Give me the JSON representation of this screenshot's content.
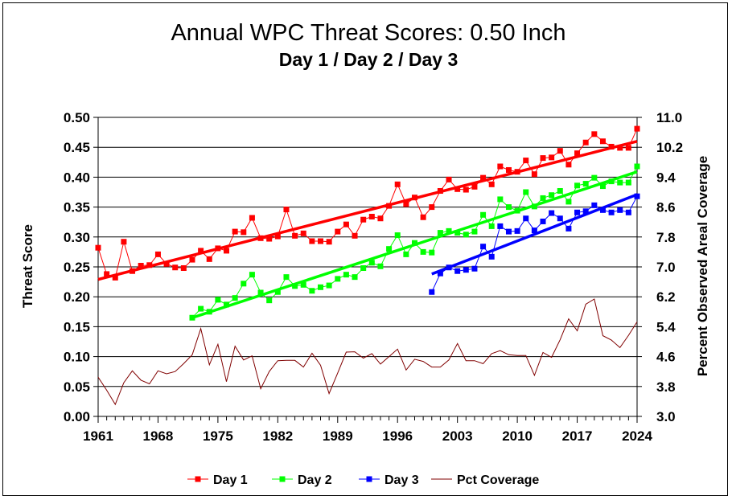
{
  "chart_data": {
    "type": "line",
    "title": "Annual WPC Threat Scores:  0.50 Inch",
    "subtitle": "Day 1 / Day 2 / Day 3",
    "ylabel": "Threat Score",
    "y2label": "Percent Observed Areal Coverage",
    "xlim": [
      1961,
      2024
    ],
    "ylim": [
      0,
      0.5
    ],
    "y2lim": [
      3.0,
      11.0
    ],
    "x_ticks": [
      "1961",
      "1968",
      "1975",
      "1982",
      "1989",
      "1996",
      "2003",
      "2010",
      "2017",
      "2024"
    ],
    "y_ticks": [
      "0.00",
      "0.05",
      "0.10",
      "0.15",
      "0.20",
      "0.25",
      "0.30",
      "0.35",
      "0.40",
      "0.45",
      "0.50"
    ],
    "y2_ticks": [
      "3.0",
      "3.8",
      "4.6",
      "5.4",
      "6.2",
      "7.0",
      "7.8",
      "8.6",
      "9.4",
      "10.2",
      "11.0"
    ],
    "grid": "horizontal",
    "legend_position": "bottom",
    "series": [
      {
        "name": "Day 1",
        "color": "#ff0000",
        "axis": "left",
        "marker": "square",
        "trend": [
          [
            1961,
            0.229
          ],
          [
            2024,
            0.46
          ]
        ],
        "x": [
          1961,
          1962,
          1963,
          1964,
          1965,
          1966,
          1967,
          1968,
          1969,
          1970,
          1971,
          1972,
          1973,
          1974,
          1975,
          1976,
          1977,
          1978,
          1979,
          1980,
          1981,
          1982,
          1983,
          1984,
          1985,
          1986,
          1987,
          1988,
          1989,
          1990,
          1991,
          1992,
          1993,
          1994,
          1995,
          1996,
          1997,
          1998,
          1999,
          2000,
          2001,
          2002,
          2003,
          2004,
          2005,
          2006,
          2007,
          2008,
          2009,
          2010,
          2011,
          2012,
          2013,
          2014,
          2015,
          2016,
          2017,
          2018,
          2019,
          2020,
          2021,
          2022,
          2023,
          2024
        ],
        "values": [
          0.282,
          0.238,
          0.232,
          0.292,
          0.243,
          0.252,
          0.253,
          0.271,
          0.255,
          0.249,
          0.248,
          0.262,
          0.277,
          0.263,
          0.281,
          0.277,
          0.309,
          0.308,
          0.332,
          0.298,
          0.297,
          0.301,
          0.346,
          0.302,
          0.306,
          0.293,
          0.293,
          0.292,
          0.309,
          0.321,
          0.302,
          0.329,
          0.334,
          0.331,
          0.352,
          0.388,
          0.355,
          0.366,
          0.333,
          0.35,
          0.377,
          0.396,
          0.38,
          0.379,
          0.384,
          0.399,
          0.388,
          0.418,
          0.412,
          0.409,
          0.428,
          0.405,
          0.432,
          0.433,
          0.444,
          0.421,
          0.44,
          0.458,
          0.472,
          0.46,
          0.451,
          0.449,
          0.449,
          0.481
        ]
      },
      {
        "name": "Day 2",
        "color": "#00ff00",
        "axis": "left",
        "marker": "square",
        "trend": [
          [
            1972,
            0.165
          ],
          [
            2024,
            0.409
          ]
        ],
        "x": [
          1972,
          1973,
          1974,
          1975,
          1976,
          1977,
          1978,
          1979,
          1980,
          1981,
          1982,
          1983,
          1984,
          1985,
          1986,
          1987,
          1988,
          1989,
          1990,
          1991,
          1992,
          1993,
          1994,
          1995,
          1996,
          1997,
          1998,
          1999,
          2000,
          2001,
          2002,
          2003,
          2004,
          2005,
          2006,
          2007,
          2008,
          2009,
          2010,
          2011,
          2012,
          2013,
          2014,
          2015,
          2016,
          2017,
          2018,
          2019,
          2020,
          2021,
          2022,
          2023,
          2024
        ],
        "values": [
          0.165,
          0.18,
          0.175,
          0.195,
          0.187,
          0.198,
          0.222,
          0.237,
          0.207,
          0.194,
          0.208,
          0.233,
          0.218,
          0.22,
          0.21,
          0.216,
          0.219,
          0.23,
          0.237,
          0.233,
          0.248,
          0.257,
          0.251,
          0.28,
          0.303,
          0.271,
          0.29,
          0.275,
          0.274,
          0.307,
          0.31,
          0.307,
          0.304,
          0.309,
          0.337,
          0.318,
          0.363,
          0.35,
          0.344,
          0.375,
          0.351,
          0.365,
          0.37,
          0.377,
          0.359,
          0.386,
          0.389,
          0.399,
          0.385,
          0.393,
          0.391,
          0.391,
          0.418
        ]
      },
      {
        "name": "Day 3",
        "color": "#0000ff",
        "axis": "left",
        "marker": "square",
        "trend": [
          [
            2000,
            0.238
          ],
          [
            2024,
            0.371
          ]
        ],
        "x": [
          2000,
          2001,
          2002,
          2003,
          2004,
          2005,
          2006,
          2007,
          2008,
          2009,
          2010,
          2011,
          2012,
          2013,
          2014,
          2015,
          2016,
          2017,
          2018,
          2019,
          2020,
          2021,
          2022,
          2023,
          2024
        ],
        "values": [
          0.208,
          0.239,
          0.249,
          0.243,
          0.245,
          0.247,
          0.284,
          0.267,
          0.318,
          0.309,
          0.31,
          0.331,
          0.311,
          0.326,
          0.34,
          0.331,
          0.314,
          0.341,
          0.343,
          0.353,
          0.345,
          0.341,
          0.345,
          0.341,
          0.368
        ]
      },
      {
        "name": "Pct Coverage",
        "color": "#800000",
        "axis": "right",
        "marker": "none",
        "x": [
          1961,
          1962,
          1963,
          1964,
          1965,
          1966,
          1967,
          1968,
          1969,
          1970,
          1971,
          1972,
          1973,
          1974,
          1975,
          1976,
          1977,
          1978,
          1979,
          1980,
          1981,
          1982,
          1983,
          1984,
          1985,
          1986,
          1987,
          1988,
          1989,
          1990,
          1991,
          1992,
          1993,
          1994,
          1995,
          1996,
          1997,
          1998,
          1999,
          2000,
          2001,
          2002,
          2003,
          2004,
          2005,
          2006,
          2007,
          2008,
          2009,
          2010,
          2011,
          2012,
          2013,
          2014,
          2015,
          2016,
          2017,
          2018,
          2019,
          2020,
          2021,
          2022,
          2023,
          2024
        ],
        "values": [
          4.05,
          3.7,
          3.32,
          3.9,
          4.22,
          3.97,
          3.87,
          4.22,
          4.14,
          4.2,
          4.41,
          4.65,
          5.35,
          4.38,
          4.93,
          3.93,
          4.88,
          4.51,
          4.62,
          3.74,
          4.2,
          4.49,
          4.5,
          4.5,
          4.32,
          4.69,
          4.37,
          3.61,
          4.16,
          4.72,
          4.73,
          4.56,
          4.68,
          4.4,
          4.6,
          4.8,
          4.24,
          4.53,
          4.47,
          4.32,
          4.32,
          4.51,
          4.95,
          4.49,
          4.49,
          4.41,
          4.68,
          4.76,
          4.65,
          4.63,
          4.63,
          4.1,
          4.71,
          4.58,
          5.05,
          5.61,
          5.29,
          6.0,
          6.14,
          5.16,
          5.04,
          4.84,
          5.17,
          5.53
        ]
      }
    ]
  }
}
